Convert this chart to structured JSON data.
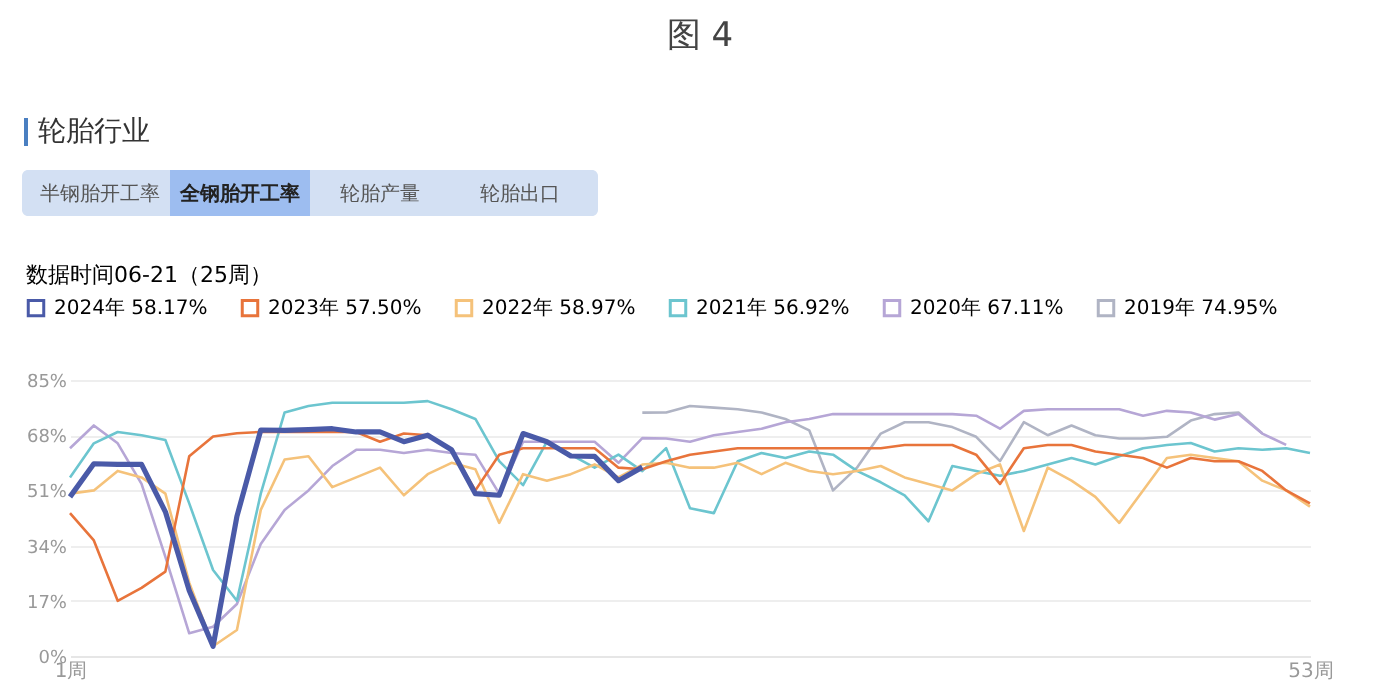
{
  "chart_data": {
    "type": "line",
    "title": "图 4",
    "subtitle": "轮胎行业",
    "annotations": [
      "半钢胎开工率",
      "全钢胎开工率",
      "轮胎产量",
      "轮胎出口"
    ],
    "legend_title": "数据时间06-21（25周）",
    "legend": "top",
    "grid": "y",
    "marker": "none",
    "line_style": "solid",
    "x": [
      1,
      2,
      3,
      4,
      5,
      6,
      7,
      8,
      9,
      10,
      11,
      12,
      13,
      14,
      15,
      16,
      17,
      18,
      19,
      20,
      21,
      22,
      23,
      24,
      25,
      26,
      27,
      28,
      29,
      30,
      31,
      32,
      33,
      34,
      35,
      36,
      37,
      38,
      39,
      40,
      41,
      42,
      43,
      44,
      45,
      46,
      47,
      48,
      49,
      50,
      51,
      52,
      53
    ],
    "xlim": [
      1,
      53
    ],
    "xticks": [
      {
        "value": 1,
        "label": "1周"
      },
      {
        "value": 53,
        "label": "53周"
      }
    ],
    "ylim": [
      0,
      85
    ],
    "yticks": [
      {
        "value": 0,
        "label": "0%"
      },
      {
        "value": 17,
        "label": "17%"
      },
      {
        "value": 34,
        "label": "34%"
      },
      {
        "value": 51,
        "label": "51%"
      },
      {
        "value": 68,
        "label": "68%"
      },
      {
        "value": 85,
        "label": "85%"
      }
    ],
    "series": [
      {
        "name": "2024年 58.17%",
        "color": "#4a5aa8",
        "values": [
          49,
          59.2,
          59,
          59,
          44.4,
          20.2,
          3,
          43,
          69.6,
          69.5,
          69.7,
          70,
          69,
          69,
          66,
          68,
          63.5,
          50,
          49.5,
          68.5,
          66,
          61.6,
          61.5,
          54,
          58.17,
          null,
          null,
          null,
          null,
          null,
          null,
          null,
          null,
          null,
          null,
          null,
          null,
          null,
          null,
          null,
          null,
          null,
          null,
          null,
          null,
          null,
          null,
          null,
          null,
          null,
          null,
          null,
          null
        ]
      },
      {
        "name": "2023年 57.50%",
        "color": "#e8743b",
        "values": [
          44,
          35.6,
          17,
          21,
          26,
          61.5,
          67.6,
          68.6,
          69,
          69,
          69,
          69,
          69,
          66,
          68.5,
          68,
          63.5,
          51,
          62,
          64,
          64,
          64,
          64,
          58,
          57.5,
          60,
          62,
          63,
          64,
          64,
          64,
          64,
          64,
          64,
          64,
          65,
          65,
          65,
          62,
          53,
          64,
          65,
          65,
          63,
          62,
          61,
          58,
          61,
          60,
          60,
          57,
          51,
          47
        ]
      },
      {
        "name": "2022年 58.97%",
        "color": "#f5c27a",
        "values": [
          50,
          51,
          57,
          55,
          50,
          22.6,
          3,
          8,
          45,
          60.5,
          61.5,
          52,
          55,
          58,
          49.5,
          56,
          59.5,
          57.5,
          41,
          56,
          54,
          56,
          59,
          55,
          58.97,
          59.5,
          58,
          58,
          59.5,
          56,
          59.5,
          57,
          56,
          57,
          58.5,
          55,
          53,
          51,
          56,
          59,
          38.5,
          58,
          54,
          49,
          41,
          51,
          61,
          62,
          61,
          60,
          54,
          51,
          46
        ]
      },
      {
        "name": "2021年 56.92%",
        "color": "#6cc5cf",
        "values": [
          55,
          65.5,
          69,
          68,
          66.5,
          47,
          26.5,
          17,
          50,
          75,
          77,
          78,
          78,
          78,
          78,
          78.5,
          76,
          73,
          60,
          52.6,
          66,
          62,
          58,
          62,
          56.92,
          64,
          45.5,
          44,
          60,
          62.5,
          61,
          63,
          62,
          57,
          53.5,
          49.5,
          41.5,
          58.5,
          57,
          55.5,
          57,
          59,
          61,
          59,
          61.5,
          64,
          65,
          65.6,
          63,
          64,
          63.5,
          64,
          62.5
        ]
      },
      {
        "name": "2020年 67.11%",
        "color": "#b6a6d6",
        "values": [
          64,
          71,
          65.5,
          53,
          30.5,
          7,
          9,
          16,
          34.5,
          45,
          51,
          58.5,
          63.5,
          63.5,
          62.5,
          63.5,
          62.5,
          62,
          50,
          66,
          66,
          66,
          66,
          59.5,
          67.11,
          67,
          66,
          68,
          69,
          70,
          72,
          73,
          74.5,
          74.5,
          74.5,
          74.5,
          74.5,
          74.5,
          74,
          70,
          75.5,
          76,
          76,
          76,
          76,
          74,
          75.5,
          75,
          72.8,
          74.5,
          68.5,
          65,
          null
        ]
      },
      {
        "name": "2019年 74.95%",
        "color": "#b0b4c4",
        "values": [
          null,
          null,
          null,
          null,
          null,
          null,
          null,
          null,
          null,
          null,
          null,
          null,
          null,
          null,
          null,
          null,
          null,
          null,
          null,
          null,
          null,
          null,
          null,
          null,
          74.95,
          75,
          77,
          76.5,
          76,
          75,
          73,
          69.5,
          51,
          58,
          68.5,
          72,
          72,
          70.5,
          67.5,
          60,
          72,
          68,
          71,
          68,
          67,
          67,
          67.5,
          72.5,
          74.5,
          75,
          68.5,
          null,
          null
        ]
      }
    ]
  }
}
